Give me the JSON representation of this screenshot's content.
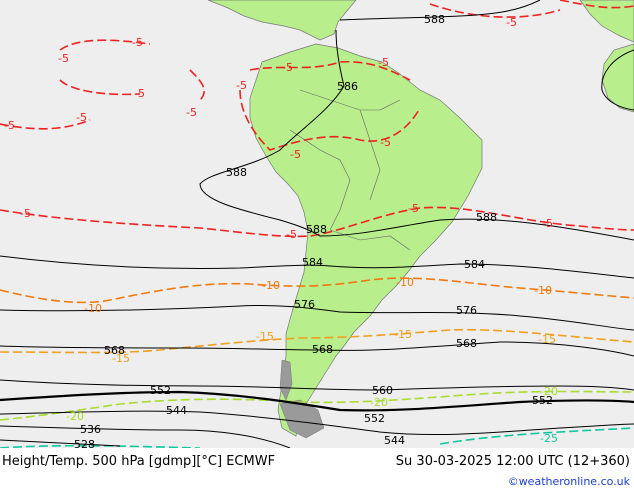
{
  "footer": {
    "title": "Height/Temp. 500 hPa [gdmp][°C] ECMWF",
    "datetime": "Su 30-03-2025 12:00 UTC (12+360)",
    "credit": "©weatheronline.co.uk"
  },
  "colors": {
    "ocean": "#eeeeee",
    "land": "#b8ee8c",
    "land_dark": "#9a9a9a",
    "height_contour": "#000000",
    "temp_minus5": "#ee2222",
    "temp_minus10": "#f07a10",
    "temp_minus15": "#f0a020",
    "temp_minus20": "#a8dc30",
    "temp_minus25": "#10c8a0"
  },
  "height_labels": [
    "588",
    "586",
    "584",
    "576",
    "568",
    "560",
    "552",
    "544",
    "536",
    "528"
  ],
  "temp_labels": [
    "-5",
    "-10",
    "-15",
    "-20",
    "-25"
  ]
}
